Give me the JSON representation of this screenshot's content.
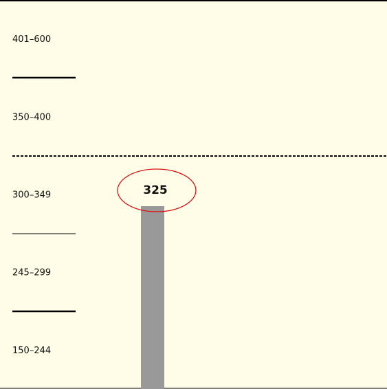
{
  "bands": [
    "401–600",
    "350–400",
    "300–349",
    "245–299",
    "150–244"
  ],
  "score": 325
}
